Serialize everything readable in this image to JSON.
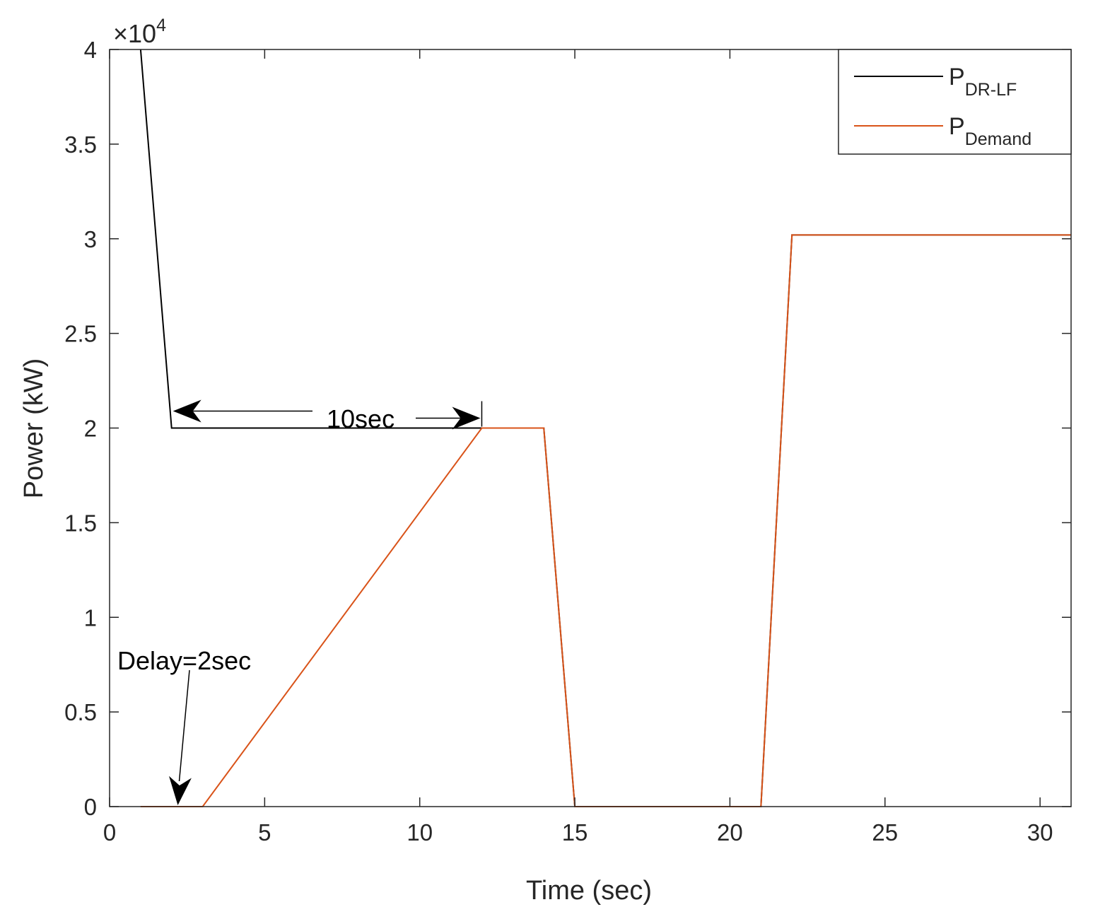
{
  "chart_data": {
    "type": "line",
    "xlabel": "Time (sec)",
    "ylabel": "Power (kW)",
    "xlim": [
      0,
      31
    ],
    "ylim": [
      0,
      40000
    ],
    "xticks": [
      0,
      5,
      10,
      15,
      20,
      25,
      30
    ],
    "xtick_labels": [
      "0",
      "5",
      "10",
      "15",
      "20",
      "25",
      "30"
    ],
    "yticks": [
      0,
      5000,
      10000,
      15000,
      20000,
      25000,
      30000,
      35000,
      40000
    ],
    "ytick_labels": [
      "0",
      "0.5",
      "1",
      "1.5",
      "2",
      "2.5",
      "3",
      "3.5",
      "4"
    ],
    "y_exponent": {
      "base": "×10",
      "power": "4"
    },
    "grid": false,
    "legend_position": "top-right",
    "series": [
      {
        "name_main": "P",
        "name_sub": "DR-LF",
        "color": "#000000",
        "x": [
          1,
          2,
          12,
          14,
          15,
          21,
          22,
          31
        ],
        "y": [
          40000,
          20000,
          20000,
          20000,
          0,
          0,
          30200,
          30200
        ]
      },
      {
        "name_main": "P",
        "name_sub": "Demand",
        "color": "#D95319",
        "x": [
          1,
          3,
          12,
          14,
          15,
          21,
          22,
          31
        ],
        "y": [
          0,
          0,
          20000,
          20000,
          0,
          0,
          30200,
          30200
        ]
      }
    ],
    "annotations": [
      {
        "text": "10sec"
      },
      {
        "text": "Delay=2sec"
      }
    ]
  }
}
